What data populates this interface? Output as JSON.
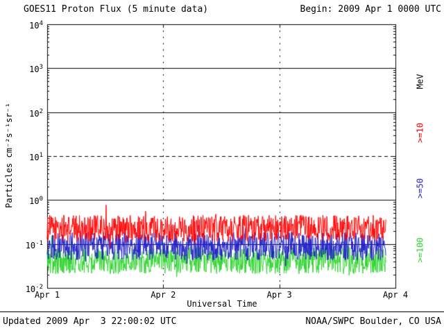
{
  "header": {
    "title": "GOES11 Proton Flux (5 minute data)",
    "begin_label": "Begin: 2009 Apr 1 0000 UTC"
  },
  "footer": {
    "updated": "Updated 2009 Apr  3 22:00:02 UTC",
    "source": "NOAA/SWPC Boulder, CO USA"
  },
  "chart_data": {
    "type": "line",
    "title": "GOES11 Proton Flux (5 minute data)",
    "xlabel": "Universal Time",
    "ylabel": "Particles cm⁻²s⁻¹sr⁻¹",
    "x_tick_labels": [
      "Apr 1",
      "Apr 2",
      "Apr 3",
      "Apr 4"
    ],
    "x_range_days": 3,
    "days_plotted": 2.9167,
    "samples": 840,
    "y_scale": "log10",
    "y_tick_base": "10",
    "y_tick_exponents": [
      4,
      3,
      2,
      1,
      0,
      -1,
      -2
    ],
    "ylim": [
      0.01,
      10000
    ],
    "grid": {
      "solid_exponents": [
        3,
        2,
        0,
        -1
      ],
      "dashed_exponents": [
        1
      ],
      "vertical_dashed_days": [
        1,
        2
      ]
    },
    "axis_right_unit": "MeV",
    "series": [
      {
        "label": ">=10",
        "color": "#ff0000",
        "approx_flux_center": 0.22,
        "log10_center": -0.64,
        "log10_spread": 0.3
      },
      {
        "label": ">=50",
        "color": "#2020c8",
        "approx_flux_center": 0.09,
        "log10_center": -1.05,
        "log10_spread": 0.32
      },
      {
        "label": ">=100",
        "color": "#2fd32f",
        "approx_flux_center": 0.045,
        "log10_center": -1.38,
        "log10_spread": 0.3
      }
    ]
  }
}
